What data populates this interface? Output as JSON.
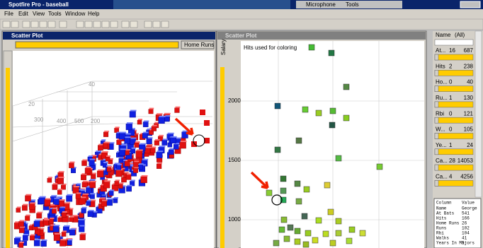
{
  "window": {
    "title": "Spotfire Pro - baseball"
  },
  "menu": [
    "File",
    "Edit",
    "View",
    "Tools",
    "Window",
    "Help"
  ],
  "taskbar": [
    "Microphone",
    "Tools"
  ],
  "left_plot": {
    "title": "Scatter Plot",
    "axis_selector": "Home Runs",
    "axis_labels": [
      "40",
      "20",
      "300",
      "400",
      "500",
      "200"
    ]
  },
  "right_plot": {
    "title": "Scatter Plot",
    "note": "Hits used for coloring",
    "y_label": "Salary",
    "y_ticks": [
      "2000",
      "1500",
      "1000"
    ]
  },
  "query_panel": {
    "name_label": "Name",
    "name_value": "(All)",
    "sliders": [
      {
        "label": "At...",
        "min": "16",
        "max": "687"
      },
      {
        "label": "Hits",
        "min": "2",
        "max": "238"
      },
      {
        "label": "Ho...",
        "min": "0",
        "max": "40"
      },
      {
        "label": "Ru...",
        "min": "1",
        "max": "130"
      },
      {
        "label": "Rbi",
        "min": "0",
        "max": "121"
      },
      {
        "label": "W...",
        "min": "0",
        "max": "105"
      },
      {
        "label": "Ye...",
        "min": "1",
        "max": "24"
      },
      {
        "label": "Ca...",
        "min": "28",
        "max": "14053"
      },
      {
        "label": "Ca...",
        "min": "4",
        "max": "4256"
      }
    ]
  },
  "details": {
    "header": [
      "Column",
      "Value"
    ],
    "rows": [
      [
        "Name",
        "George"
      ],
      [
        "At Bats",
        "541"
      ],
      [
        "Hits",
        "166"
      ],
      [
        "Home Runs",
        "26"
      ],
      [
        "Runs",
        "102"
      ],
      [
        "Rbi",
        "104"
      ],
      [
        "Walks",
        "41"
      ],
      [
        "Years In Majors",
        "5"
      ]
    ]
  }
}
